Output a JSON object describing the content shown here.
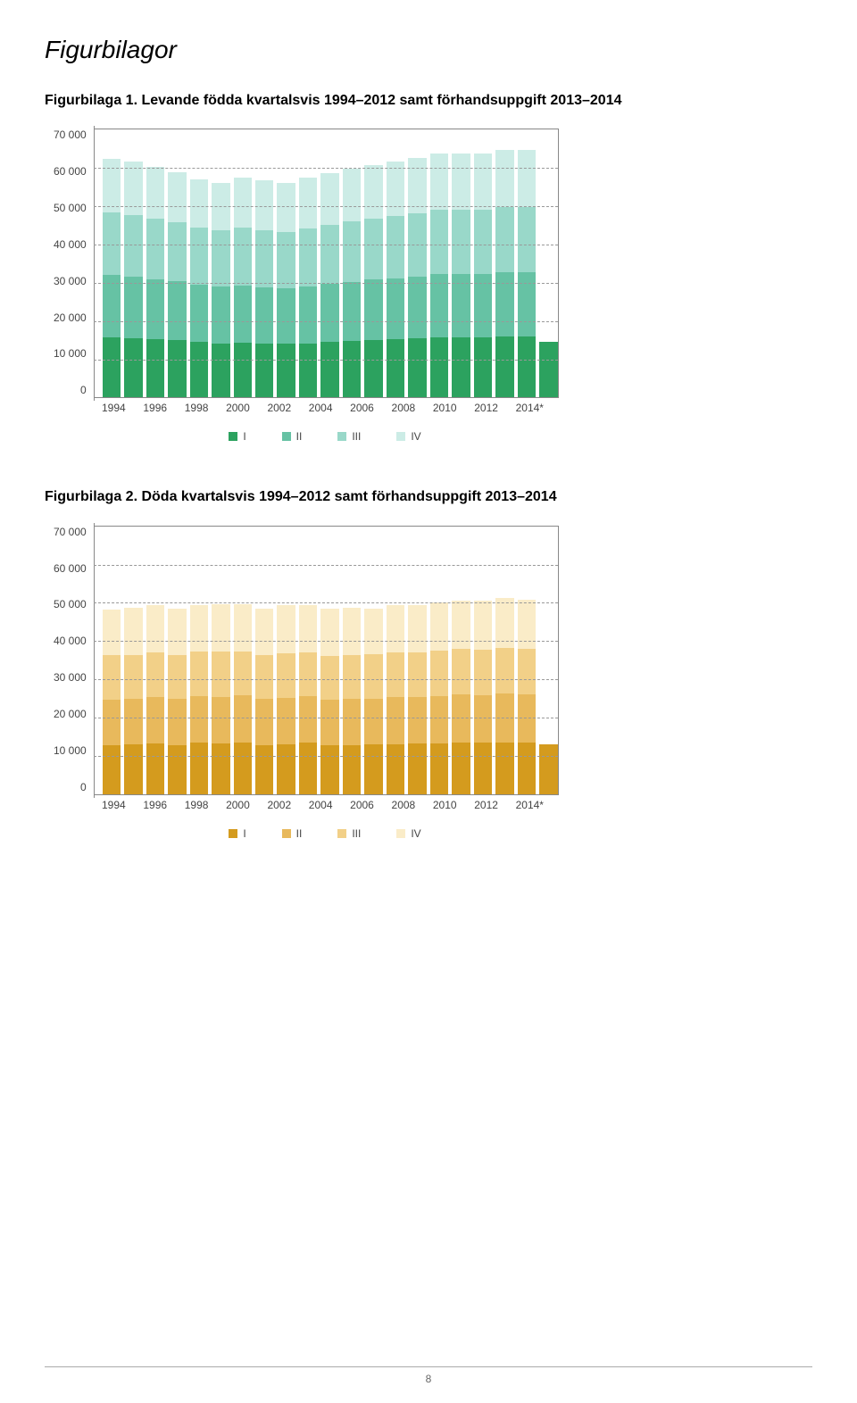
{
  "page": {
    "title": "Figurbilagor",
    "page_number": "8"
  },
  "fig1": {
    "caption": "Figurbilaga 1. Levande födda kvartalsvis 1994–2012 samt förhandsuppgift 2013–2014",
    "type": "stacked-bar",
    "ylim": [
      0,
      70000
    ],
    "ytick_step": 10000,
    "yticks": [
      "70 000",
      "60 000",
      "50 000",
      "40 000",
      "30 000",
      "20 000",
      "10 000",
      "0"
    ],
    "xlabels": [
      "1994",
      "1996",
      "1998",
      "2000",
      "2002",
      "2004",
      "2006",
      "2008",
      "2010",
      "2012",
      "2014*"
    ],
    "colors": [
      "#2ca25f",
      "#66c2a4",
      "#99d8c9",
      "#ccece6"
    ],
    "legend": [
      "I",
      "II",
      "III",
      "IV"
    ],
    "grid_color": "#999999",
    "background_color": "#ffffff",
    "data": [
      [
        15800,
        16200,
        16500,
        14000
      ],
      [
        15600,
        16000,
        16200,
        13800
      ],
      [
        15200,
        15800,
        15800,
        13500
      ],
      [
        15000,
        15400,
        15400,
        13000
      ],
      [
        14500,
        15000,
        15000,
        12500
      ],
      [
        14200,
        14800,
        14800,
        12200
      ],
      [
        14300,
        15000,
        15200,
        13000
      ],
      [
        14000,
        14800,
        15000,
        12900
      ],
      [
        14000,
        14500,
        14800,
        12700
      ],
      [
        14200,
        14800,
        15200,
        13200
      ],
      [
        14500,
        15200,
        15500,
        13500
      ],
      [
        14800,
        15500,
        15800,
        13700
      ],
      [
        15000,
        15800,
        16000,
        14000
      ],
      [
        15200,
        16000,
        16200,
        14200
      ],
      [
        15500,
        16200,
        16500,
        14500
      ],
      [
        15800,
        16500,
        16800,
        14700
      ],
      [
        15800,
        16500,
        16800,
        14700
      ],
      [
        15800,
        16500,
        16800,
        14700
      ],
      [
        16000,
        16800,
        17000,
        15000
      ],
      [
        16000,
        16800,
        17000,
        15000
      ],
      [
        14500,
        0,
        0,
        0
      ]
    ]
  },
  "fig2": {
    "caption": "Figurbilaga 2. Döda kvartalsvis 1994–2012 samt förhandsuppgift 2013–2014",
    "type": "stacked-bar",
    "ylim": [
      0,
      70000
    ],
    "ytick_step": 10000,
    "yticks": [
      "70 000",
      "60 000",
      "50 000",
      "40 000",
      "30 000",
      "20 000",
      "10 000",
      "0"
    ],
    "xlabels": [
      "1994",
      "1996",
      "1998",
      "2000",
      "2002",
      "2004",
      "2006",
      "2008",
      "2010",
      "2012",
      "2014*"
    ],
    "colors": [
      "#d49b1e",
      "#e8b95c",
      "#f2d088",
      "#faecc8"
    ],
    "legend": [
      "I",
      "II",
      "III",
      "IV"
    ],
    "grid_color": "#999999",
    "background_color": "#ffffff",
    "data": [
      [
        12800,
        12000,
        11500,
        12000
      ],
      [
        13000,
        12000,
        11400,
        12300
      ],
      [
        13200,
        12200,
        11600,
        12400
      ],
      [
        12900,
        12000,
        11500,
        12200
      ],
      [
        13400,
        12200,
        11600,
        12300
      ],
      [
        13300,
        12200,
        11700,
        12500
      ],
      [
        13500,
        12300,
        11600,
        12300
      ],
      [
        12900,
        12000,
        11400,
        12200
      ],
      [
        13100,
        12100,
        11700,
        12500
      ],
      [
        13400,
        12200,
        11500,
        12300
      ],
      [
        12800,
        12000,
        11400,
        12200
      ],
      [
        12900,
        12000,
        11500,
        12300
      ],
      [
        13000,
        12000,
        11500,
        12000
      ],
      [
        13100,
        12200,
        11700,
        12400
      ],
      [
        13200,
        12200,
        11600,
        12500
      ],
      [
        13300,
        12400,
        11800,
        12600
      ],
      [
        13500,
        12500,
        12000,
        12700
      ],
      [
        13400,
        12500,
        11900,
        12800
      ],
      [
        13600,
        12700,
        12000,
        13000
      ],
      [
        13500,
        12600,
        12000,
        12800
      ],
      [
        13000,
        0,
        0,
        0
      ]
    ]
  }
}
